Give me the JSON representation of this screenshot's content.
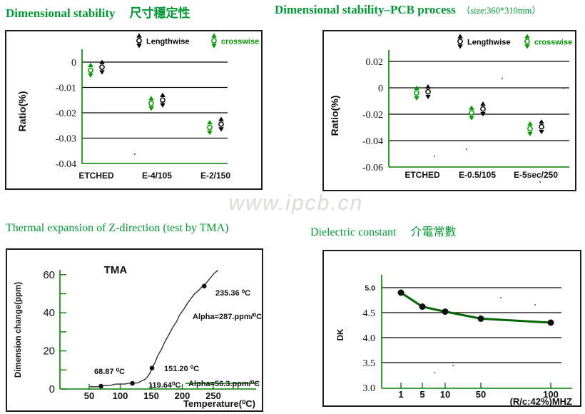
{
  "titles": {
    "top_left": {
      "en": "Dimensional stability",
      "zh": "尺寸穩定性"
    },
    "top_right": {
      "en": "Dimensional stability–PCB process",
      "note": "（size:360*310mm）"
    },
    "bottom_left": {
      "en": "Thermal expansion of Z-direction (test by TMA)"
    },
    "bottom_right": {
      "en": "Dielectric constant",
      "zh": "介電常數"
    }
  },
  "watermark": {
    "text": "www.ipcb.cn",
    "color": "#dcdad7"
  },
  "colors": {
    "title_green": "#009933",
    "axis_green": "#008000",
    "grid_black": "#000000",
    "lengthwise": "#000000",
    "crosswise": "#009900",
    "dk_line": "#006600",
    "border": "#1c1c1c",
    "watermark_gray": "#dcdad7"
  },
  "chart_data": [
    {
      "id": "dimensional_stability",
      "type": "scatter",
      "title": "Dimensional stability 尺寸穩定性",
      "ylabel": "Ratio(%)",
      "yticks": [
        0,
        -0.01,
        -0.02,
        -0.03,
        -0.04
      ],
      "ylim": [
        0.002,
        -0.04
      ],
      "grid": true,
      "legend_position": "top-right",
      "legend": [
        {
          "name": "Lengthwise",
          "color": "#000000"
        },
        {
          "name": "crosswise",
          "color": "#009900"
        }
      ],
      "categories": [
        "ETCHED",
        "E-4/105",
        "E-2/150"
      ],
      "series": [
        {
          "name": "Lengthwise",
          "color": "#000000",
          "values": [
            -0.002,
            -0.015,
            -0.0245
          ]
        },
        {
          "name": "crosswise",
          "color": "#009900",
          "values": [
            -0.0032,
            -0.0163,
            -0.0258
          ]
        }
      ]
    },
    {
      "id": "dimensional_stability_pcb",
      "type": "scatter",
      "title": "Dimensional stability–PCB process （size:360*310mm）",
      "ylabel": "Ratio(%)",
      "yticks": [
        0.02,
        0,
        -0.02,
        -0.04,
        -0.06
      ],
      "ylim": [
        0.025,
        -0.06
      ],
      "grid": true,
      "legend_position": "top-right",
      "legend": [
        {
          "name": "Lengthwise",
          "color": "#000000"
        },
        {
          "name": "crosswise",
          "color": "#009900"
        }
      ],
      "categories": [
        "ETCHED",
        "E-0.5/105",
        "E-5sec/250"
      ],
      "series": [
        {
          "name": "Lengthwise",
          "color": "#000000",
          "values": [
            -0.003,
            -0.016,
            -0.0295
          ]
        },
        {
          "name": "crosswise",
          "color": "#009900",
          "values": [
            -0.004,
            -0.019,
            -0.031
          ]
        }
      ]
    },
    {
      "id": "tma",
      "type": "line",
      "title": "TMA",
      "xlabel": "Temperature(⁰C)",
      "ylabel": "Dimension change(ppm)",
      "xticks": [
        50,
        100,
        150,
        200,
        250
      ],
      "yticks": [
        0,
        20,
        40,
        60
      ],
      "xlim": [
        40,
        290
      ],
      "ylim": [
        0,
        65
      ],
      "curve": [
        [
          51,
          1
        ],
        [
          58,
          1.2
        ],
        [
          65,
          1.4
        ],
        [
          69,
          1.5
        ],
        [
          76,
          1.8
        ],
        [
          84,
          2.1
        ],
        [
          92,
          2.4
        ],
        [
          100,
          2.6
        ],
        [
          108,
          2.8
        ],
        [
          116,
          3.0
        ],
        [
          122,
          3.1
        ],
        [
          128,
          3.4
        ],
        [
          134,
          4.0
        ],
        [
          139,
          5.0
        ],
        [
          144,
          6.6
        ],
        [
          148,
          8.6
        ],
        [
          151.2,
          11
        ],
        [
          155,
          13.8
        ],
        [
          160,
          17
        ],
        [
          166,
          21
        ],
        [
          172,
          25
        ],
        [
          178,
          28.5
        ],
        [
          184,
          32
        ],
        [
          190,
          35.5
        ],
        [
          196,
          38.8
        ],
        [
          202,
          42
        ],
        [
          208,
          45
        ],
        [
          214,
          47.6
        ],
        [
          220,
          50
        ],
        [
          226,
          52
        ],
        [
          232,
          53.6
        ],
        [
          238,
          55.6
        ],
        [
          244,
          58
        ],
        [
          250,
          60.2
        ],
        [
          254,
          61.4
        ],
        [
          257,
          62.5
        ]
      ],
      "points": [
        {
          "temp": 69,
          "ppm": 1.5,
          "label": "68.87 ⁰C"
        },
        {
          "temp": 119.6,
          "ppm": 3.0,
          "label": "119.64⁰C"
        },
        {
          "temp": 151.2,
          "ppm": 11,
          "label": "151.20 ⁰C"
        },
        {
          "temp": 235.4,
          "ppm": 54,
          "label": "235.36 ⁰C"
        }
      ],
      "annotations": [
        {
          "text": "Alpha=287.ppm/⁰C",
          "strike": false
        },
        {
          "text": "Alpha=56.3.ppm/⁰C",
          "strike": true
        }
      ]
    },
    {
      "id": "dk",
      "type": "line",
      "title": "Dielectric constant 介電常數",
      "xlabel": "(R/c:42%)MHZ",
      "ylabel": "DK",
      "x_categories": [
        "1",
        "5",
        "10",
        "50",
        "100"
      ],
      "yticks": [
        5.0,
        4.5,
        4.0,
        3.5,
        3.0
      ],
      "ylim": [
        3.0,
        5.2
      ],
      "values": [
        4.9,
        4.62,
        4.52,
        4.38,
        4.3
      ]
    }
  ]
}
